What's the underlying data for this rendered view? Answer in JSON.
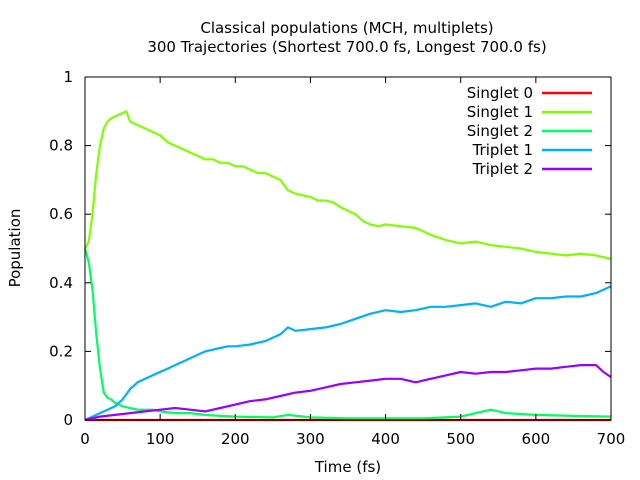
{
  "chart_data": {
    "type": "line",
    "title": "Classical populations (MCH, multiplets)",
    "subtitle": "300 Trajectories (Shortest 700.0 fs, Longest 700.0 fs)",
    "xlabel": "Time (fs)",
    "ylabel": "Population",
    "xlim": [
      0,
      700
    ],
    "ylim": [
      0,
      1
    ],
    "xticks": [
      0,
      100,
      200,
      300,
      400,
      500,
      600,
      700
    ],
    "yticks": [
      0,
      0.2,
      0.4,
      0.6,
      0.8,
      1
    ],
    "grid": false,
    "legend_position": "top-right",
    "series": [
      {
        "name": "Singlet 0",
        "color": "#ff0000",
        "x": [
          0,
          700
        ],
        "y": [
          0.0,
          0.0
        ]
      },
      {
        "name": "Singlet 1",
        "color": "#80ff00",
        "x": [
          0,
          5,
          10,
          15,
          20,
          25,
          30,
          35,
          40,
          45,
          50,
          55,
          60,
          70,
          80,
          90,
          100,
          110,
          120,
          130,
          140,
          150,
          160,
          170,
          180,
          190,
          200,
          210,
          220,
          230,
          240,
          250,
          260,
          270,
          280,
          290,
          300,
          310,
          320,
          330,
          340,
          350,
          360,
          370,
          380,
          390,
          400,
          420,
          440,
          460,
          480,
          500,
          520,
          540,
          560,
          580,
          600,
          620,
          640,
          660,
          680,
          700
        ],
        "y": [
          0.5,
          0.52,
          0.6,
          0.72,
          0.8,
          0.85,
          0.87,
          0.88,
          0.885,
          0.89,
          0.895,
          0.9,
          0.87,
          0.86,
          0.85,
          0.84,
          0.83,
          0.81,
          0.8,
          0.79,
          0.78,
          0.77,
          0.76,
          0.76,
          0.75,
          0.75,
          0.74,
          0.74,
          0.73,
          0.72,
          0.72,
          0.71,
          0.7,
          0.67,
          0.66,
          0.655,
          0.65,
          0.64,
          0.64,
          0.635,
          0.62,
          0.61,
          0.6,
          0.58,
          0.57,
          0.565,
          0.57,
          0.565,
          0.56,
          0.54,
          0.525,
          0.515,
          0.52,
          0.51,
          0.505,
          0.5,
          0.49,
          0.485,
          0.48,
          0.485,
          0.48,
          0.47
        ]
      },
      {
        "name": "Singlet 2",
        "color": "#00ff60",
        "x": [
          0,
          5,
          10,
          15,
          20,
          25,
          30,
          35,
          40,
          50,
          60,
          70,
          80,
          90,
          100,
          120,
          140,
          160,
          180,
          200,
          250,
          270,
          300,
          350,
          400,
          450,
          500,
          540,
          560,
          600,
          650,
          700
        ],
        "y": [
          0.5,
          0.46,
          0.38,
          0.25,
          0.15,
          0.08,
          0.065,
          0.06,
          0.05,
          0.04,
          0.035,
          0.03,
          0.03,
          0.03,
          0.025,
          0.02,
          0.02,
          0.015,
          0.012,
          0.01,
          0.008,
          0.015,
          0.008,
          0.005,
          0.005,
          0.005,
          0.01,
          0.03,
          0.02,
          0.015,
          0.012,
          0.01
        ]
      },
      {
        "name": "Triplet 1",
        "color": "#00b0ff",
        "x": [
          0,
          10,
          20,
          30,
          40,
          50,
          60,
          70,
          80,
          90,
          100,
          110,
          120,
          130,
          140,
          150,
          160,
          170,
          180,
          190,
          200,
          220,
          240,
          260,
          270,
          280,
          300,
          320,
          340,
          360,
          380,
          400,
          420,
          440,
          460,
          480,
          500,
          520,
          540,
          560,
          580,
          600,
          620,
          640,
          660,
          680,
          700
        ],
        "y": [
          0.0,
          0.01,
          0.02,
          0.03,
          0.04,
          0.06,
          0.09,
          0.11,
          0.12,
          0.13,
          0.14,
          0.15,
          0.16,
          0.17,
          0.18,
          0.19,
          0.2,
          0.205,
          0.21,
          0.215,
          0.215,
          0.22,
          0.23,
          0.25,
          0.27,
          0.26,
          0.265,
          0.27,
          0.28,
          0.295,
          0.31,
          0.32,
          0.315,
          0.32,
          0.33,
          0.33,
          0.335,
          0.34,
          0.33,
          0.345,
          0.34,
          0.355,
          0.355,
          0.36,
          0.36,
          0.37,
          0.39
        ]
      },
      {
        "name": "Triplet 2",
        "color": "#9900ff",
        "x": [
          0,
          20,
          40,
          60,
          80,
          100,
          120,
          140,
          160,
          180,
          200,
          220,
          240,
          260,
          280,
          300,
          320,
          340,
          360,
          380,
          400,
          420,
          440,
          460,
          480,
          500,
          520,
          540,
          560,
          580,
          600,
          620,
          640,
          660,
          680,
          690,
          700
        ],
        "y": [
          0.0,
          0.01,
          0.015,
          0.02,
          0.025,
          0.03,
          0.035,
          0.03,
          0.025,
          0.035,
          0.045,
          0.055,
          0.06,
          0.07,
          0.08,
          0.085,
          0.095,
          0.105,
          0.11,
          0.115,
          0.12,
          0.12,
          0.11,
          0.12,
          0.13,
          0.14,
          0.135,
          0.14,
          0.14,
          0.145,
          0.15,
          0.15,
          0.155,
          0.16,
          0.16,
          0.14,
          0.125
        ]
      }
    ]
  }
}
